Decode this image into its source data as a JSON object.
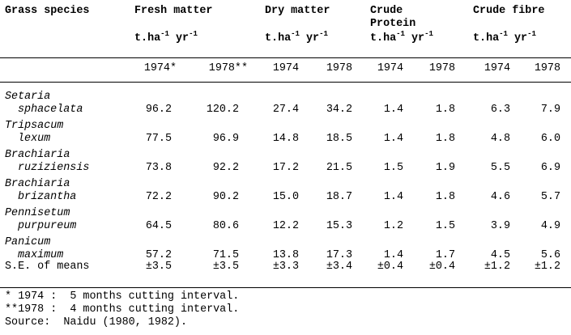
{
  "table": {
    "header": {
      "species": "Grass species",
      "groups": [
        "Fresh matter",
        "Dry matter",
        "Crude",
        "Crude fibre"
      ],
      "group_line2": "Protein",
      "unit_prefix": "t.ha",
      "unit_exp1": "-1",
      "unit_yr": "yr",
      "unit_exp2": "-1",
      "years": [
        "1974*",
        "1978**",
        "1974",
        "1978",
        "1974",
        "1978",
        "1974",
        "1978"
      ]
    },
    "rows": [
      {
        "genus": "Setaria",
        "species": "sphacelata",
        "values": [
          "96.2",
          "120.2",
          "27.4",
          "34.2",
          "1.4",
          "1.8",
          "6.3",
          "7.9"
        ]
      },
      {
        "genus": "Tripsacum",
        "species": "lexum",
        "values": [
          "77.5",
          "96.9",
          "14.8",
          "18.5",
          "1.4",
          "1.8",
          "4.8",
          "6.0"
        ]
      },
      {
        "genus": "Brachiaria",
        "species": "ruziziensis",
        "values": [
          "73.8",
          "92.2",
          "17.2",
          "21.5",
          "1.5",
          "1.9",
          "5.5",
          "6.9"
        ]
      },
      {
        "genus": "Brachiaria",
        "species": "brizantha",
        "values": [
          "72.2",
          "90.2",
          "15.0",
          "18.7",
          "1.4",
          "1.8",
          "4.6",
          "5.7"
        ]
      },
      {
        "genus": "Pennisetum",
        "species": "purpureum",
        "values": [
          "64.5",
          "80.6",
          "12.2",
          "15.3",
          "1.2",
          "1.5",
          "3.9",
          "4.9"
        ]
      },
      {
        "genus": "Panicum",
        "species": "maximum",
        "values": [
          "57.2",
          "71.5",
          "13.8",
          "17.3",
          "1.4",
          "1.7",
          "4.5",
          "5.6"
        ]
      }
    ],
    "se_row": {
      "label": "S.E. of means",
      "values": [
        "±3.5",
        "±3.5",
        "±3.3",
        "±3.4",
        "±0.4",
        "±0.4",
        "±1.2",
        "±1.2"
      ]
    }
  },
  "footnotes": [
    "* 1974 :  5 months cutting interval.",
    "**1978 :  4 months cutting interval.",
    "Source:  Naidu (1980, 1982)."
  ]
}
